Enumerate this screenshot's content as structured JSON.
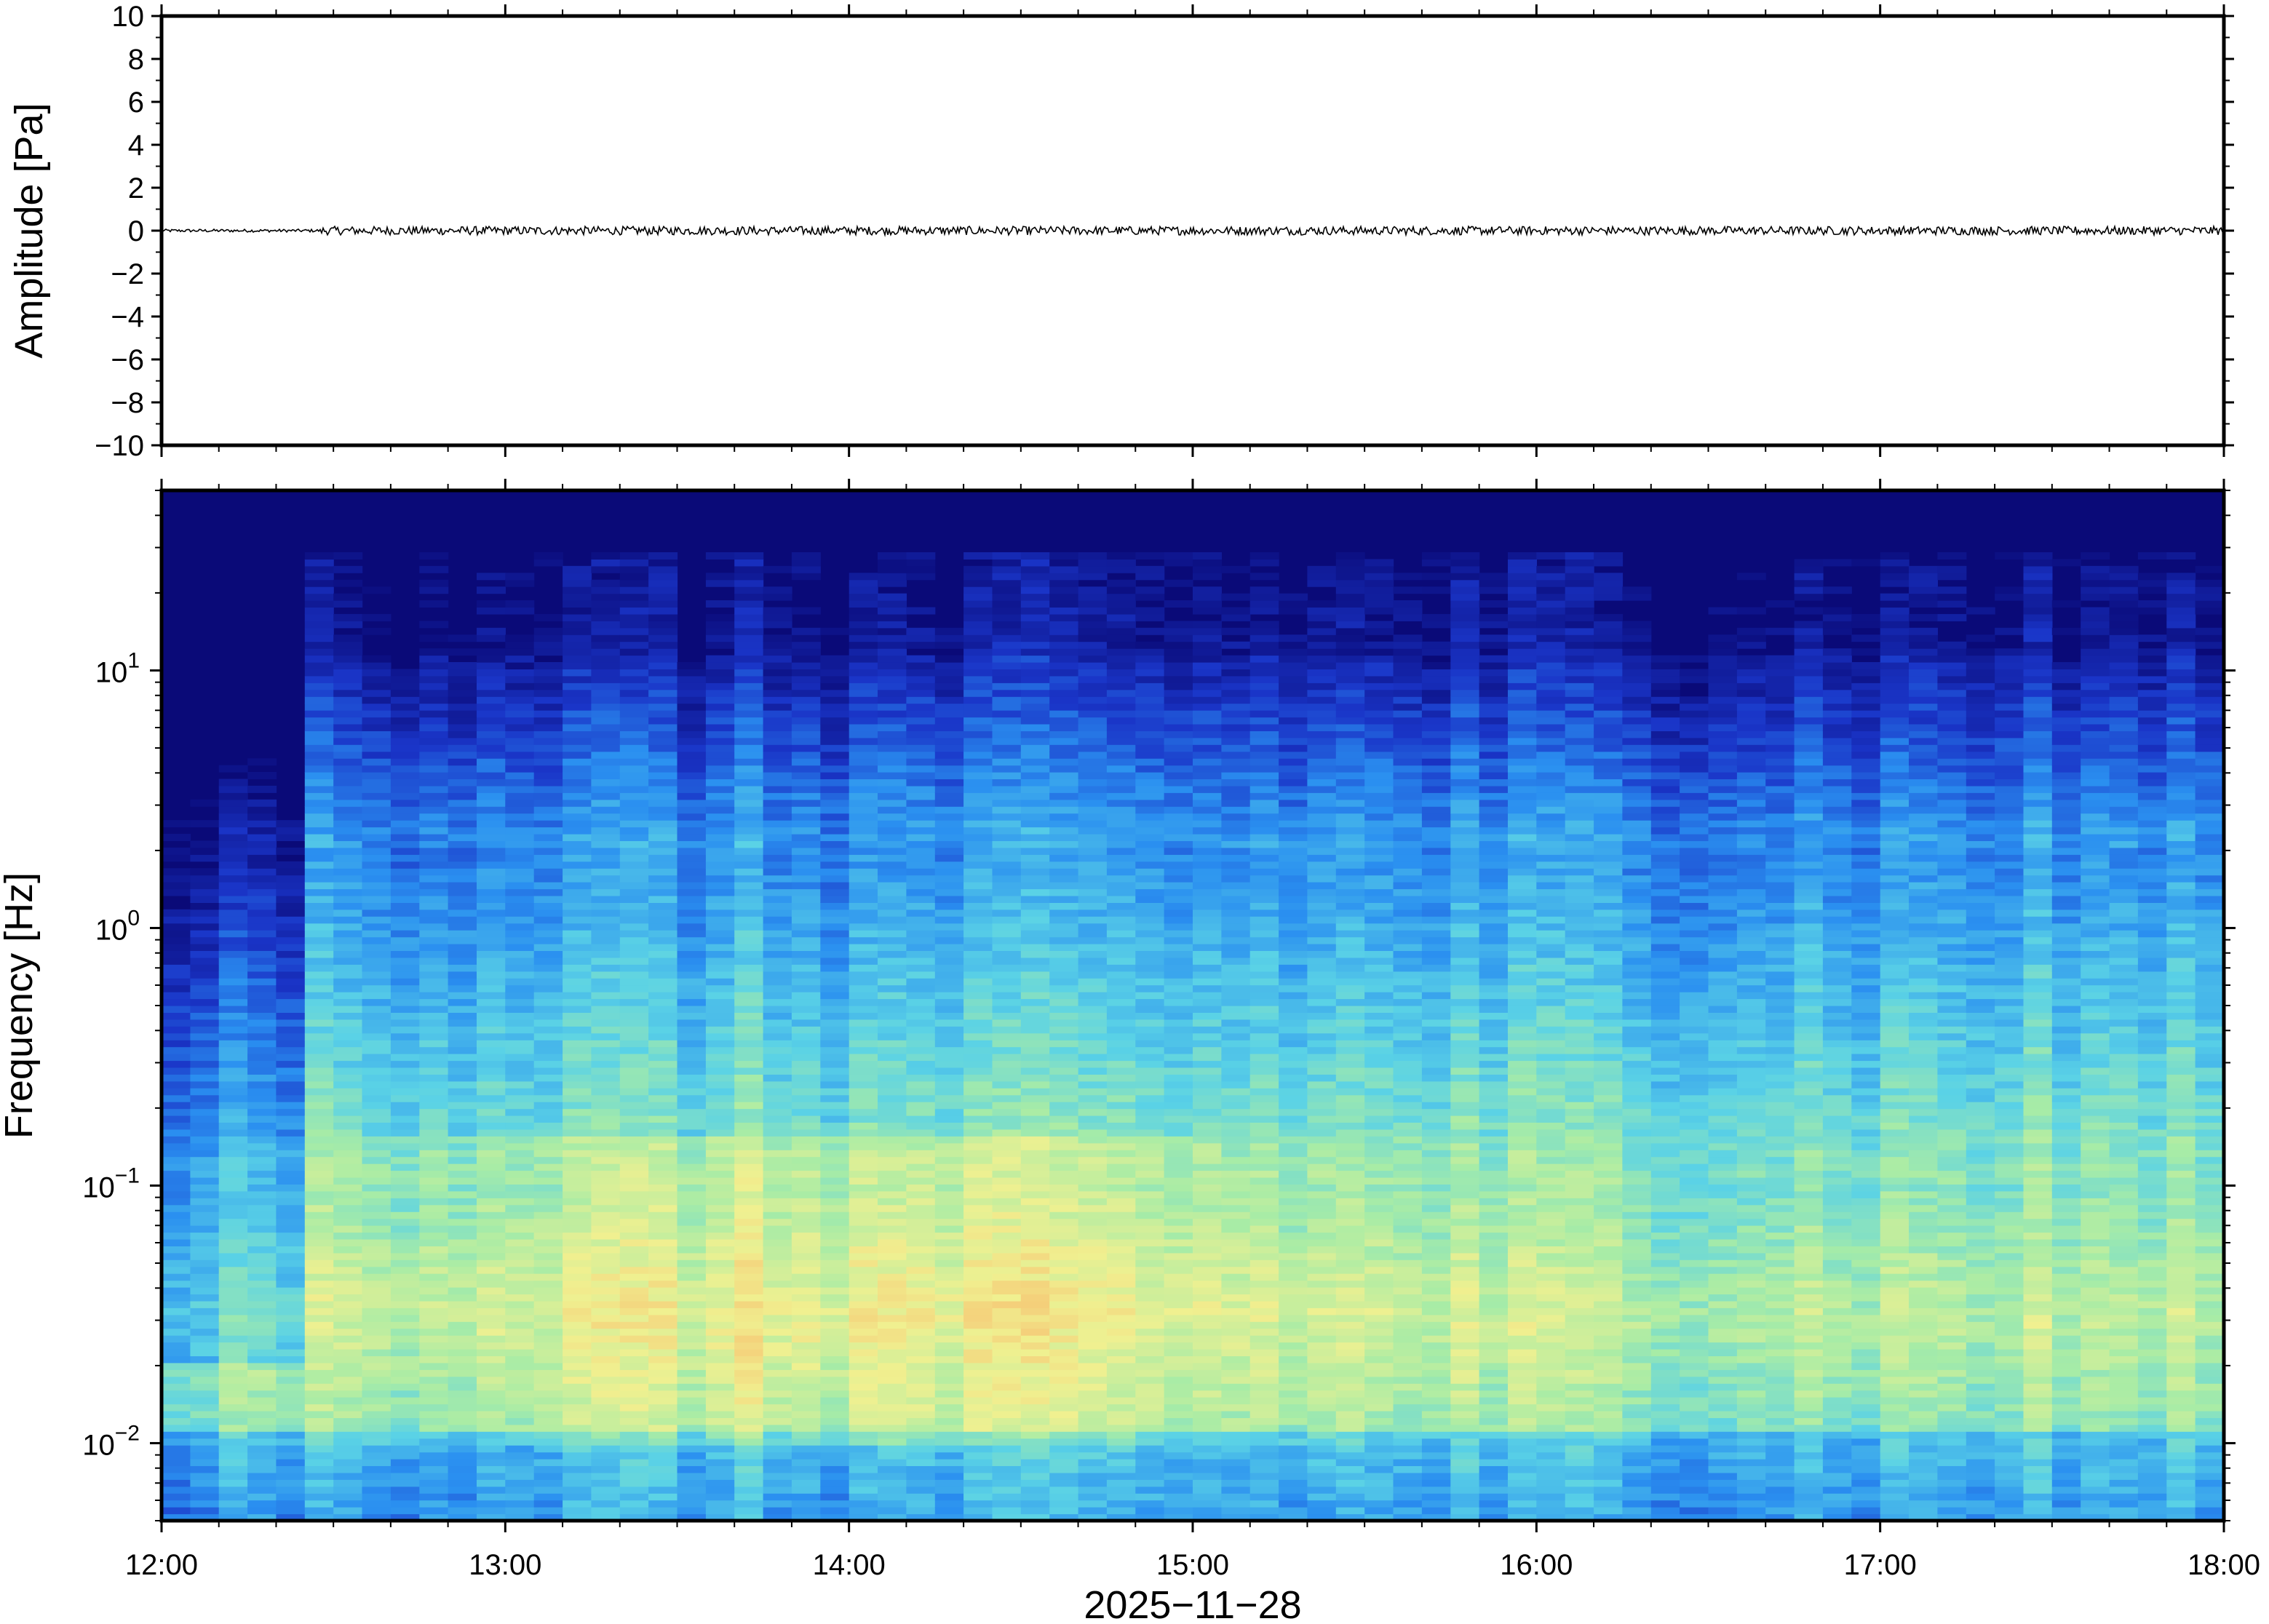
{
  "chart_data": [
    {
      "type": "line",
      "panel": "waveform",
      "title": "",
      "xlabel": "",
      "ylabel": "Amplitude [Pa]",
      "ylim": [
        -10,
        10
      ],
      "xlim": [
        "12:00",
        "18:00"
      ],
      "yticks": [
        -10,
        -8,
        -6,
        -4,
        -2,
        0,
        2,
        4,
        6,
        8,
        10
      ],
      "ytick_labels": [
        "−10",
        "−8",
        "−6",
        "−4",
        "−2",
        "0",
        "2",
        "4",
        "6",
        "8",
        "10"
      ],
      "series": [
        {
          "x": [
            "12:00",
            "18:00"
          ],
          "y": [
            0,
            0
          ],
          "peak_amplitude": 0.2,
          "color": "#000000"
        }
      ],
      "grid": false
    },
    {
      "type": "heatmap",
      "panel": "spectrogram",
      "title": "",
      "xlabel": "2025−11−28",
      "ylabel": "Frequency [Hz]",
      "yscale": "log",
      "ylim": [
        0.005,
        50
      ],
      "xlim": [
        "12:00",
        "18:00"
      ],
      "xticks": [
        "12:00",
        "13:00",
        "14:00",
        "15:00",
        "16:00",
        "17:00",
        "18:00"
      ],
      "yticks": [
        {
          "value": 10,
          "base": "10",
          "exp": "1"
        },
        {
          "value": 1,
          "base": "10",
          "exp": "0"
        },
        {
          "value": 0.1,
          "base": "10",
          "exp": "−1"
        },
        {
          "value": 0.01,
          "base": "10",
          "exp": "−2"
        }
      ],
      "colormap": [
        "#0a0a78",
        "#1a35c8",
        "#2a8ff0",
        "#5ad2e6",
        "#a8eca6",
        "#f0f090",
        "#f6c070"
      ],
      "quiet_interval": [
        "12:00",
        "12:27"
      ],
      "grid": false
    }
  ]
}
